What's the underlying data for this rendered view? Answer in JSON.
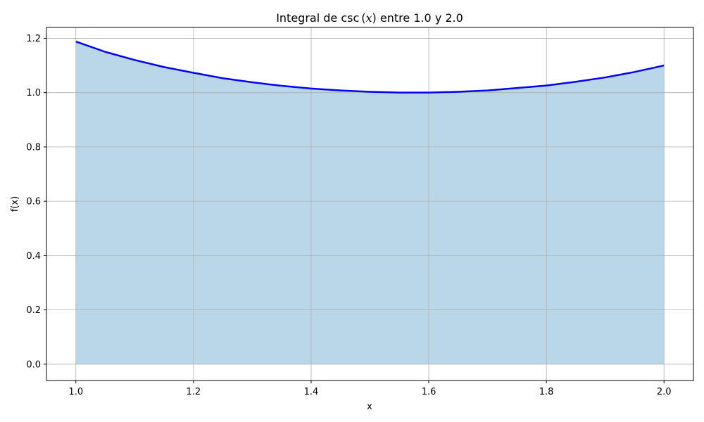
{
  "chart_data": {
    "type": "area",
    "title_parts": {
      "prefix": "Integral de csc",
      "paren_open": "(",
      "var": "x",
      "paren_close": ")",
      "suffix": " entre 1.0 y 2.0"
    },
    "xlabel": "x",
    "ylabel": "f(x)",
    "xlim": [
      0.95,
      2.05
    ],
    "ylim": [
      -0.06,
      1.24
    ],
    "x_ticks": [
      1.0,
      1.2,
      1.4,
      1.6,
      1.8,
      2.0
    ],
    "x_tick_labels": [
      "1.0",
      "1.2",
      "1.4",
      "1.6",
      "1.8",
      "2.0"
    ],
    "y_ticks": [
      0.0,
      0.2,
      0.4,
      0.6,
      0.8,
      1.0,
      1.2
    ],
    "y_tick_labels": [
      "0.0",
      "0.2",
      "0.4",
      "0.6",
      "0.8",
      "1.0",
      "1.2"
    ],
    "grid": true,
    "series": [
      {
        "x": [
          1.0,
          1.05,
          1.1,
          1.15,
          1.2,
          1.25,
          1.3,
          1.35,
          1.4,
          1.45,
          1.5,
          1.55,
          1.6,
          1.65,
          1.7,
          1.75,
          1.8,
          1.85,
          1.9,
          1.95,
          2.0
        ],
        "y": [
          1.188,
          1.15,
          1.12,
          1.094,
          1.073,
          1.053,
          1.038,
          1.025,
          1.015,
          1.008,
          1.003,
          1.0,
          1.0,
          1.003,
          1.008,
          1.017,
          1.026,
          1.04,
          1.056,
          1.076,
          1.1
        ]
      }
    ],
    "fill_range": [
      1.0,
      2.0
    ],
    "colors": {
      "line": "#0000ff",
      "fill": "#bad6e9",
      "grid": "#b0b0b0",
      "axes": "#000000"
    }
  }
}
